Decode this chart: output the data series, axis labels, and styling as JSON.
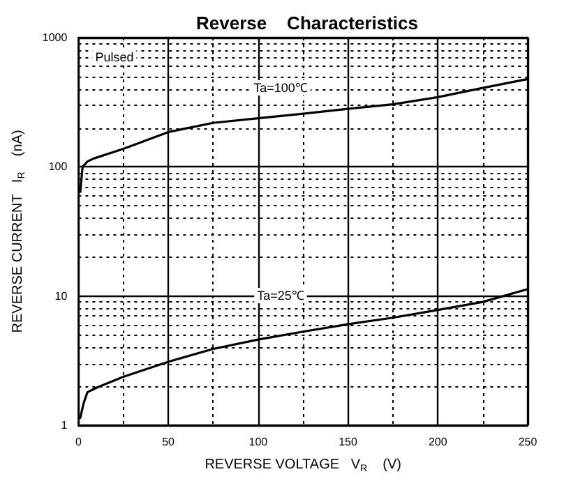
{
  "chart_data": {
    "type": "line",
    "title": "Reverse    Characteristics",
    "xlabel": "REVERSE VOLTAGE   V$_{R}$    (V)",
    "ylabel": "REVERSE CURRENT   I$_{R}$    (nA)",
    "series": [
      {
        "color": "#000000",
        "x": [
          1,
          2.3,
          5,
          8.5,
          25,
          50,
          75,
          100,
          125,
          150,
          175,
          200,
          225,
          250
        ],
        "values": [
          64,
          100,
          110,
          116,
          138,
          186,
          219,
          238,
          258,
          281,
          305,
          346,
          408,
          478
        ]
      },
      {
        "color": "#000000",
        "x": [
          1,
          3,
          5,
          10,
          25,
          50,
          75,
          100,
          125,
          150,
          175,
          200,
          225,
          250
        ],
        "values": [
          1.14,
          1.5,
          1.8,
          1.95,
          2.37,
          3.1,
          3.9,
          4.6,
          5.3,
          6.05,
          6.8,
          7.8,
          9.0,
          11.3
        ]
      }
    ],
    "annotations": [
      "Pulsed",
      "Ta=100℃",
      "Ta=25℃"
    ],
    "xlim": [
      0,
      250
    ],
    "xticks": [
      0,
      50,
      100,
      150,
      200,
      250
    ],
    "ylim": [
      1,
      1000
    ],
    "yticks": [
      1,
      10,
      100,
      1000
    ],
    "log": "y",
    "grid": true,
    "marker": "none",
    "line_style": "solid"
  }
}
